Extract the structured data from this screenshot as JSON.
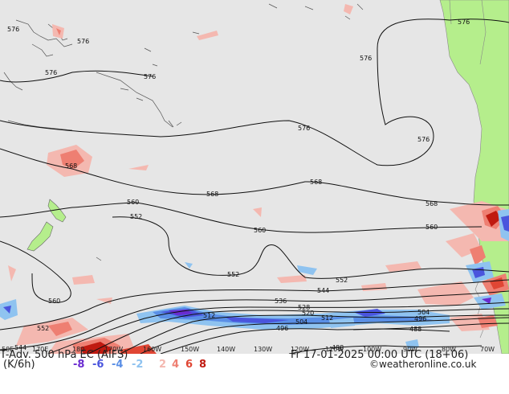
{
  "map": {
    "longitude_labels": [
      "50E",
      "170E",
      "180",
      "170W",
      "160W",
      "150W",
      "140W",
      "130W",
      "120W",
      "110W",
      "100W",
      "90W",
      "80W",
      "70W"
    ],
    "contour_labels": [
      "576",
      "576",
      "576",
      "576",
      "576",
      "576",
      "576",
      "576",
      "568",
      "568",
      "568",
      "568",
      "560",
      "560",
      "560",
      "560",
      "552",
      "552",
      "552",
      "552",
      "544",
      "544",
      "536",
      "528",
      "520",
      "512",
      "512",
      "504",
      "504",
      "496",
      "496",
      "488",
      "488"
    ]
  },
  "footer": {
    "title": "T-Adv. 500 hPa  EC (AIFS)",
    "datetime": "Fr 17-01-2025 00:00 UTC (18+06)",
    "units": "(K/6h)",
    "credit": "©weatheronline.co.uk",
    "scale": [
      {
        "label": "-8",
        "color": "#6a2bd0"
      },
      {
        "label": "-6",
        "color": "#4a55dd"
      },
      {
        "label": "-4",
        "color": "#5a8fe6"
      },
      {
        "label": "-2",
        "color": "#8fc3f0"
      },
      {
        "label": "2",
        "color": "#f4b8b0"
      },
      {
        "label": "4",
        "color": "#ee7f72"
      },
      {
        "label": "6",
        "color": "#e04634"
      },
      {
        "label": "8",
        "color": "#c01a10"
      }
    ]
  }
}
